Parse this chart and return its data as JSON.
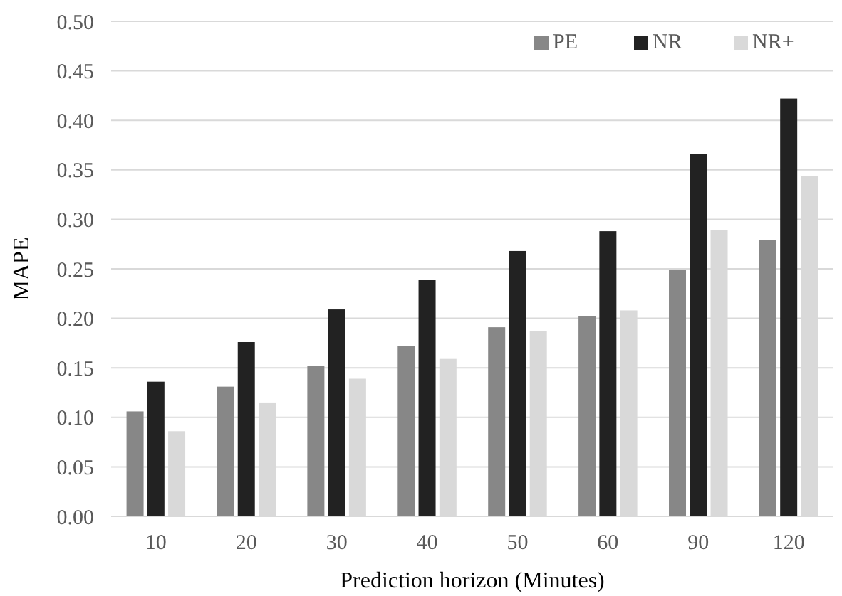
{
  "chart_data": {
    "type": "bar",
    "xlabel": "Prediction horizon (Minutes)",
    "ylabel": "MAPE",
    "categories": [
      "10",
      "20",
      "30",
      "40",
      "50",
      "60",
      "90",
      "120"
    ],
    "series": [
      {
        "name": "PE",
        "color": "#878787",
        "values": [
          0.106,
          0.131,
          0.152,
          0.172,
          0.191,
          0.202,
          0.249,
          0.279
        ]
      },
      {
        "name": "NR",
        "color": "#222222",
        "values": [
          0.136,
          0.176,
          0.209,
          0.239,
          0.268,
          0.288,
          0.366,
          0.422
        ]
      },
      {
        "name": "NR+",
        "color": "#d9d9d9",
        "values": [
          0.086,
          0.115,
          0.139,
          0.159,
          0.187,
          0.208,
          0.289,
          0.344
        ]
      }
    ],
    "ylim": [
      0,
      0.5
    ],
    "yticks": [
      {
        "value": 0,
        "label": "0.00"
      },
      {
        "value": 0.05,
        "label": "0.05"
      },
      {
        "value": 0.1,
        "label": "0.10"
      },
      {
        "value": 0.15,
        "label": "0.15"
      },
      {
        "value": 0.2,
        "label": "0.20"
      },
      {
        "value": 0.25,
        "label": "0.25"
      },
      {
        "value": 0.3,
        "label": "0.30"
      },
      {
        "value": 0.35,
        "label": "0.35"
      },
      {
        "value": 0.4,
        "label": "0.40"
      },
      {
        "value": 0.45,
        "label": "0.45"
      },
      {
        "value": 0.5,
        "label": "0.50"
      }
    ],
    "grid": "y",
    "legend": "top right"
  }
}
